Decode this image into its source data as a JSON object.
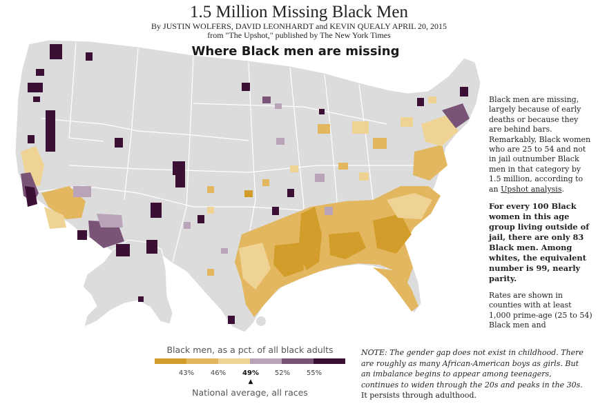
{
  "header": {
    "title": "1.5 Million Missing Black Men",
    "byline": "By JUSTIN WOLFERS, DAVID LEONHARDT and KEVIN QUEALY APRIL 20, 2015",
    "source": "from \"The Upshot,\" published by The New York Times"
  },
  "map": {
    "title": "Where Black men are missing",
    "colors": {
      "land": "#dcdcdc",
      "borders": "#ffffff",
      "bin_lowest": "#d39d2b",
      "bin_low": "#e3b760",
      "bin_mid_low": "#efd394",
      "bin_mid_high": "#b9a3b8",
      "bin_high": "#7a5477",
      "bin_highest": "#3b1034"
    }
  },
  "side_text": {
    "p1_before_link": "Black men are missing, largely because of early deaths or because they are behind bars. Remarkably, Black women who are 25 to 54 and not in jail outnumber Black men in that category by 1.5 million, according to an ",
    "p1_link": "Upshot analysis",
    "p1_after_link": ".",
    "p2_bold": "For every 100 Black women in this age group living outside of jail, there are only 83 Black men. Among whites, the equivalent number is 99, nearly parity.",
    "p3": "Rates are shown in counties with at least 1,000 prime-age (25 to 54) Black men and"
  },
  "legend": {
    "title": "Black men, as a pct. of all black adults",
    "swatches": [
      "#d39d2b",
      "#e3b760",
      "#efd394",
      "#b9a3b8",
      "#7a5477",
      "#3b1034"
    ],
    "ticks": [
      "43%",
      "46%",
      "49%",
      "52%",
      "55%"
    ],
    "highlight_tick_index": 2,
    "arrow": "▲",
    "average_label": "National average, all races"
  },
  "note": {
    "italic": "NOTE: The gender gap does not exist in childhood. There are roughly as many African-American boys as girls. But an imbalance begins to appear among teenagers, continues to widen through the 20s and peaks in the 30s.",
    "regular": " It persists through adulthood."
  }
}
